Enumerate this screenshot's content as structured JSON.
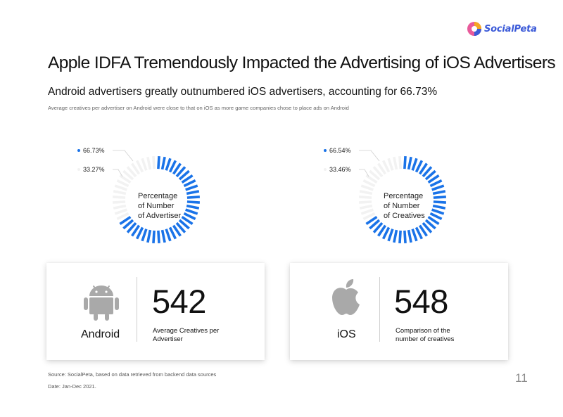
{
  "brand": {
    "name": "SocialPeta"
  },
  "header": {
    "title": "Apple IDFA Tremendously Impacted the Advertising of iOS Advertisers",
    "subtitle": "Android advertisers greatly outnumbered iOS advertisers, accounting for 66.73%",
    "note": "Average creatives per advertiser on Android were close to that on iOS as more game companies chose to place ads on Android"
  },
  "chart_data": [
    {
      "type": "pie",
      "title": "Percentage of Number of Advertiser",
      "title_lines": [
        "Percentage",
        "of Number",
        "of Advertiser"
      ],
      "slices": [
        {
          "label": "66.73%",
          "value": 66.73,
          "color": "#1a73e8"
        },
        {
          "label": "33.27%",
          "value": 33.27,
          "color": "#f2f2f2"
        }
      ]
    },
    {
      "type": "pie",
      "title": "Percentage of Number of Creatives",
      "title_lines": [
        "Percentage",
        "of Number",
        "of Creatives"
      ],
      "slices": [
        {
          "label": "66.54%",
          "value": 66.54,
          "color": "#1a73e8"
        },
        {
          "label": "33.46%",
          "value": 33.46,
          "color": "#f2f2f2"
        }
      ]
    }
  ],
  "cards": [
    {
      "platform": "Android",
      "icon": "android-icon",
      "number": "542",
      "label_lines": [
        "Average Creatives per",
        "Advertiser"
      ]
    },
    {
      "platform": "iOS",
      "icon": "apple-icon",
      "number": "548",
      "label_lines": [
        "Comparison of the",
        "number of creatives"
      ]
    }
  ],
  "footer": {
    "source": "Source: SocialPeta, based on data retrieved from backend data sources",
    "date": "Date: Jan-Dec 2021.",
    "page_number": "11"
  },
  "colors": {
    "accent": "#1a73e8",
    "remainder": "#f2f2f2",
    "icon_gray": "#a9a9a9",
    "brand": "#3b5ad8"
  }
}
